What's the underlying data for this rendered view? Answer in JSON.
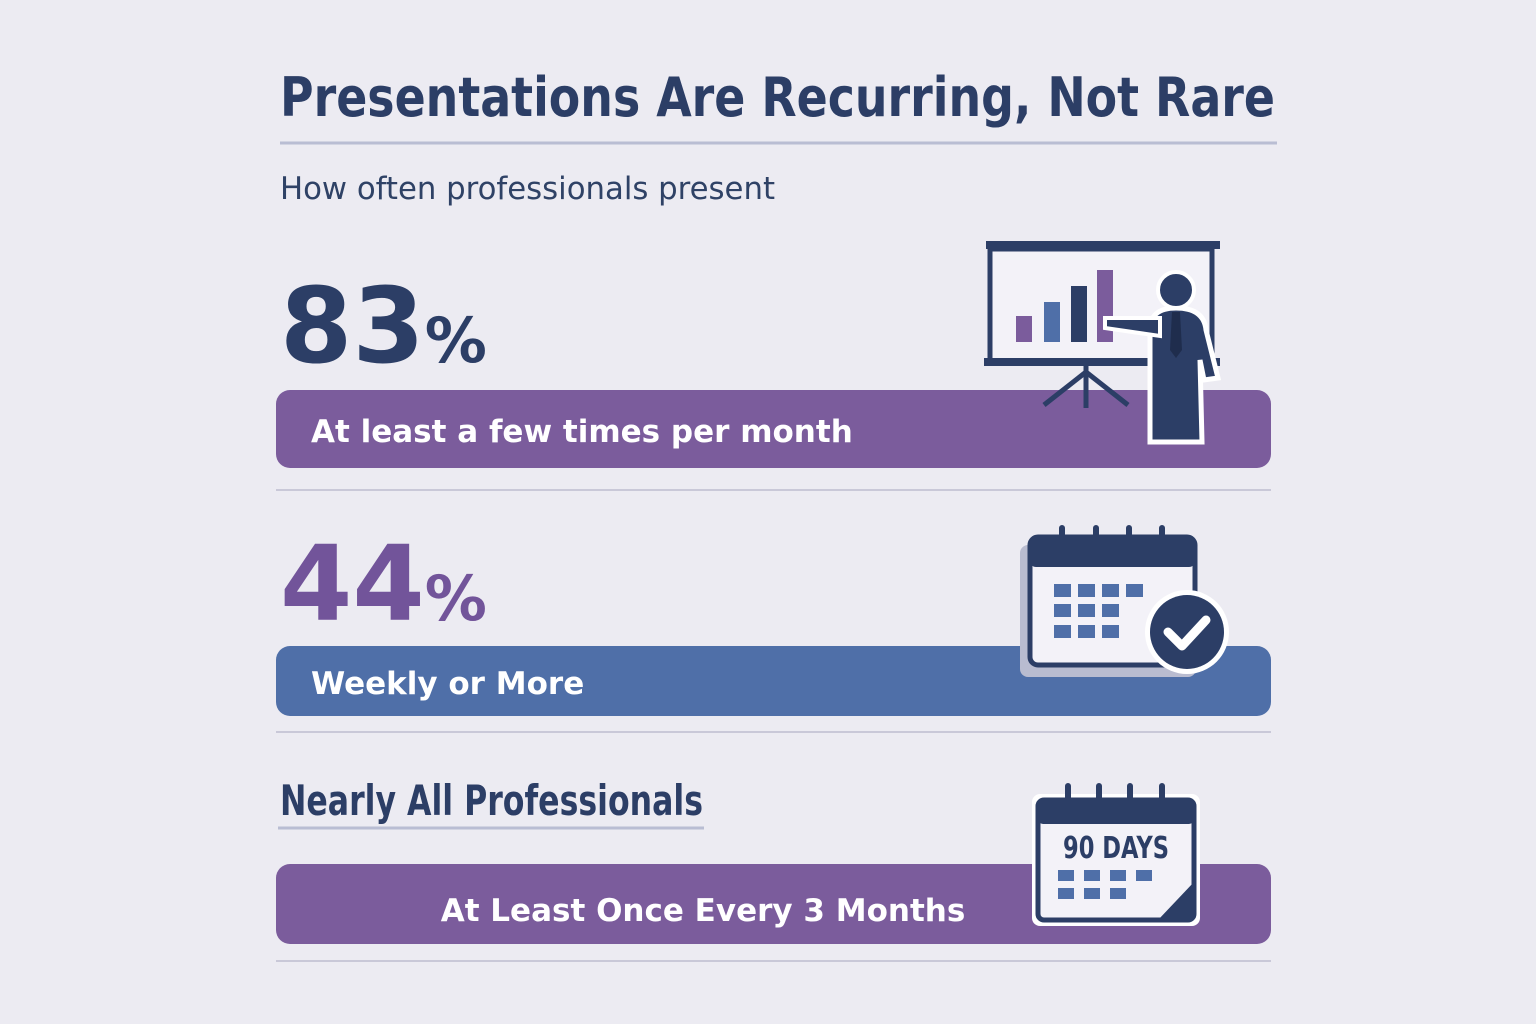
{
  "header": {
    "title": "Presentations Are Recurring, Not Rare",
    "subtitle": "How often professionals present"
  },
  "stats": [
    {
      "number": "83",
      "unit": "%",
      "label": "At least a few times per month"
    },
    {
      "number": "44",
      "unit": "%",
      "label": "Weekly or More"
    },
    {
      "heading": "Nearly All Professionals",
      "label": "At Least Once Every 3 Months",
      "icon_text": "90 DAYS"
    }
  ]
}
